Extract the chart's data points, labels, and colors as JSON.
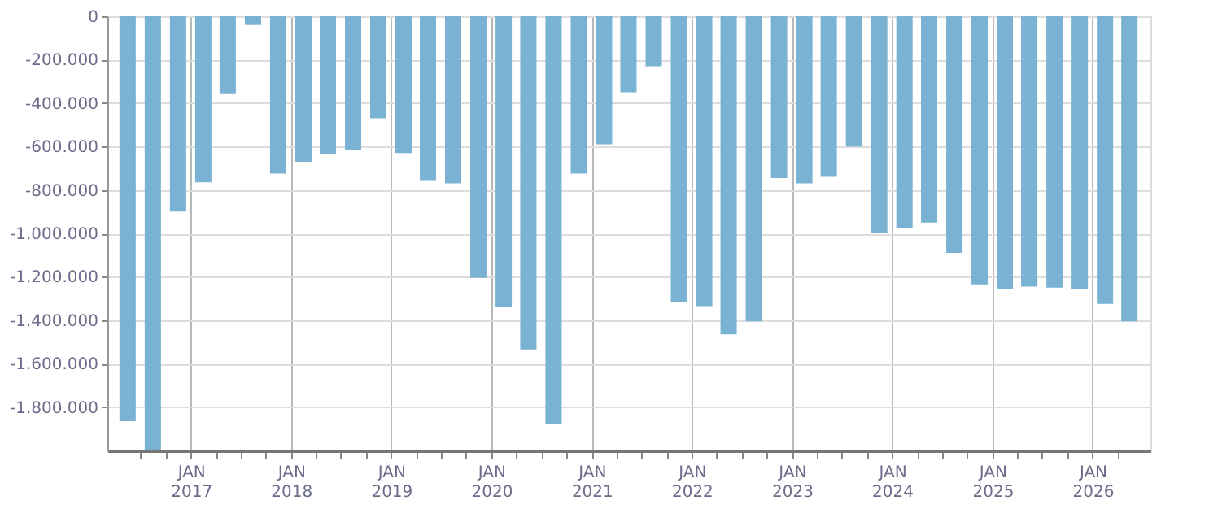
{
  "chart_data": {
    "type": "bar",
    "x": [
      "2016-05-15",
      "2016-08-15",
      "2016-11-15",
      "2017-02-15",
      "2017-05-15",
      "2017-08-15",
      "2017-11-15",
      "2018-02-15",
      "2018-05-15",
      "2018-08-15",
      "2018-11-15",
      "2019-02-15",
      "2019-05-15",
      "2019-08-15",
      "2019-11-15",
      "2020-02-15",
      "2020-05-15",
      "2020-08-15",
      "2020-11-15",
      "2021-02-15",
      "2021-05-15",
      "2021-08-15",
      "2021-11-15",
      "2022-02-15",
      "2022-05-15",
      "2022-08-15",
      "2022-11-15",
      "2023-02-15",
      "2023-05-15",
      "2023-08-15",
      "2023-11-15",
      "2024-02-15",
      "2024-05-15",
      "2024-08-15",
      "2024-11-15",
      "2025-02-15",
      "2025-05-15",
      "2025-08-15",
      "2025-11-15",
      "2026-02-15",
      "2026-05-15"
    ],
    "values": [
      -1865000,
      -2000000,
      -900000,
      -765000,
      -355000,
      -40000,
      -725000,
      -670000,
      -635000,
      -615000,
      -470000,
      -630000,
      -755000,
      -770000,
      -1205000,
      -1340000,
      -1535000,
      -1880000,
      -725000,
      -590000,
      -350000,
      -230000,
      -1315000,
      -1335000,
      -1465000,
      -1405000,
      -745000,
      -770000,
      -740000,
      -600000,
      -1000000,
      -975000,
      -950000,
      -1090000,
      -1235000,
      -1255000,
      -1245000,
      -1250000,
      -1255000,
      -1325000,
      -1405000
    ],
    "color": "#7ab2d4",
    "xlim": [
      "2016-04-01",
      "2026-07-01"
    ],
    "xticks": [
      {
        "value": "2016-07-01",
        "label": null
      },
      {
        "value": "2016-10-01",
        "label": null
      },
      {
        "value": "2017-01-01",
        "label": "JAN 2017"
      },
      {
        "value": "2017-04-01",
        "label": null
      },
      {
        "value": "2017-07-01",
        "label": null
      },
      {
        "value": "2017-10-01",
        "label": null
      },
      {
        "value": "2018-01-01",
        "label": "JAN 2018"
      },
      {
        "value": "2018-04-01",
        "label": null
      },
      {
        "value": "2018-07-01",
        "label": null
      },
      {
        "value": "2018-10-01",
        "label": null
      },
      {
        "value": "2019-01-01",
        "label": "JAN 2019"
      },
      {
        "value": "2019-04-01",
        "label": null
      },
      {
        "value": "2019-07-01",
        "label": null
      },
      {
        "value": "2019-10-01",
        "label": null
      },
      {
        "value": "2020-01-01",
        "label": "JAN 2020"
      },
      {
        "value": "2020-04-01",
        "label": null
      },
      {
        "value": "2020-07-01",
        "label": null
      },
      {
        "value": "2020-10-01",
        "label": null
      },
      {
        "value": "2021-01-01",
        "label": "JAN 2021"
      },
      {
        "value": "2021-04-01",
        "label": null
      },
      {
        "value": "2021-07-01",
        "label": null
      },
      {
        "value": "2021-10-01",
        "label": null
      },
      {
        "value": "2022-01-01",
        "label": "JAN 2022"
      },
      {
        "value": "2022-04-01",
        "label": null
      },
      {
        "value": "2022-07-01",
        "label": null
      },
      {
        "value": "2022-10-01",
        "label": null
      },
      {
        "value": "2023-01-01",
        "label": "JAN 2023"
      },
      {
        "value": "2023-04-01",
        "label": null
      },
      {
        "value": "2023-07-01",
        "label": null
      },
      {
        "value": "2023-10-01",
        "label": null
      },
      {
        "value": "2024-01-01",
        "label": "JAN 2024"
      },
      {
        "value": "2024-04-01",
        "label": null
      },
      {
        "value": "2024-07-01",
        "label": null
      },
      {
        "value": "2024-10-01",
        "label": null
      },
      {
        "value": "2025-01-01",
        "label": "JAN 2025"
      },
      {
        "value": "2025-04-01",
        "label": null
      },
      {
        "value": "2025-07-01",
        "label": null
      },
      {
        "value": "2025-10-01",
        "label": null
      },
      {
        "value": "2026-01-01",
        "label": "JAN 2026"
      },
      {
        "value": "2026-04-01",
        "label": null
      }
    ],
    "ylim": [
      -2000000,
      0
    ],
    "yticks": [
      {
        "value": -1800000,
        "label": "-1.800.000"
      },
      {
        "value": -1600000,
        "label": "-1.600.000"
      },
      {
        "value": -1400000,
        "label": "-1.400.000"
      },
      {
        "value": -1200000,
        "label": "-1.200.000"
      },
      {
        "value": -1000000,
        "label": "-1.000.000"
      },
      {
        "value": -800000,
        "label": "-800.000"
      },
      {
        "value": -600000,
        "label": "-600.000"
      },
      {
        "value": -400000,
        "label": "-400.000"
      },
      {
        "value": -200000,
        "label": "-200.000"
      },
      0
    ],
    "grid": true
  }
}
